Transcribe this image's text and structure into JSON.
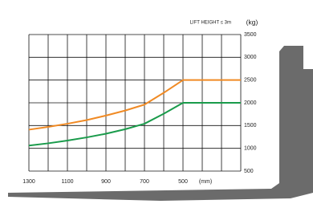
{
  "chart_data": {
    "type": "line",
    "annotation": "LIFT HEIGHT ≤ 3m",
    "y_unit": "(kg)",
    "x_unit": "(mm)",
    "x": [
      1300,
      1200,
      1100,
      1000,
      900,
      800,
      700,
      600,
      500,
      400,
      300,
      200
    ],
    "series": [
      {
        "color": "#f08a24",
        "values": [
          1410,
          1470,
          1540,
          1620,
          1720,
          1830,
          1960,
          2220,
          2500,
          2500,
          2500,
          2500
        ]
      },
      {
        "color": "#1a9b4b",
        "values": [
          1060,
          1110,
          1170,
          1240,
          1320,
          1420,
          1540,
          1760,
          2000,
          2000,
          2000,
          2000
        ]
      }
    ],
    "xlim": [
      1300,
      200
    ],
    "xticks": [
      1300,
      1100,
      900,
      700,
      500
    ],
    "x_grid": [
      1300,
      1200,
      1100,
      1000,
      900,
      800,
      700,
      600,
      500,
      400,
      300,
      200
    ],
    "ylim": [
      500,
      3500
    ],
    "yticks": [
      500,
      1000,
      1500,
      2000,
      2500,
      3000,
      3500
    ],
    "grid": true
  }
}
